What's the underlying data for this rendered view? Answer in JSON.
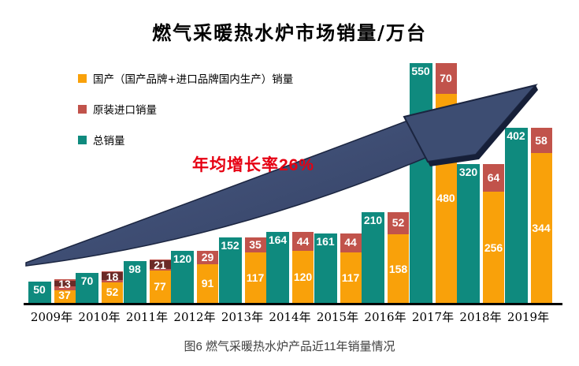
{
  "title": "燃气采暖热水炉市场销量/万台",
  "caption": "图6 燃气采暖热水炉产品近11年销量情况",
  "annotation": "年均增长率26%",
  "legend": [
    {
      "label": "国产（国产品牌+进口品牌国内生产）销量",
      "color": "#F9A10A"
    },
    {
      "label": "原装进口销量",
      "color": "#C1534B"
    },
    {
      "label": "总销量",
      "color": "#0F8A7E"
    }
  ],
  "colors": {
    "total_bar": "#0F8A7E",
    "domestic_bar": "#F9A10A",
    "import_bar": "#C1534B",
    "import_bar_dark_stripe": "#6B2B27",
    "arrow": "#3D4D72",
    "arrow_edge": "#1B2540",
    "annotation_red": "#e60012",
    "axis": "#000000"
  },
  "chart_data": {
    "type": "bar",
    "title": "燃气采暖热水炉市场销量/万台",
    "unit": "万台",
    "categories": [
      "2009年",
      "2010年",
      "2011年",
      "2012年",
      "2013年",
      "2014年",
      "2015年",
      "2016年",
      "2017年",
      "2018年",
      "2019年"
    ],
    "series": [
      {
        "name": "总销量",
        "color": "#0F8A7E",
        "values": [
          50,
          70,
          98,
          120,
          152,
          164,
          161,
          210,
          550,
          320,
          402
        ]
      },
      {
        "name": "国产（国产品牌+进口品牌国内生产）销量",
        "color": "#F9A10A",
        "values": [
          37,
          52,
          77,
          91,
          117,
          120,
          117,
          158,
          480,
          256,
          344
        ]
      },
      {
        "name": "原装进口销量",
        "color": "#C1534B",
        "values": [
          13,
          18,
          21,
          29,
          35,
          44,
          44,
          52,
          70,
          64,
          58
        ]
      }
    ],
    "stacking": "国产 + 原装进口 stacked beside 总销量",
    "annotation": "年均增长率26%",
    "ylim": [
      0,
      560
    ],
    "grid": false,
    "legend_position": "top-left",
    "xlabel": "",
    "ylabel": ""
  }
}
